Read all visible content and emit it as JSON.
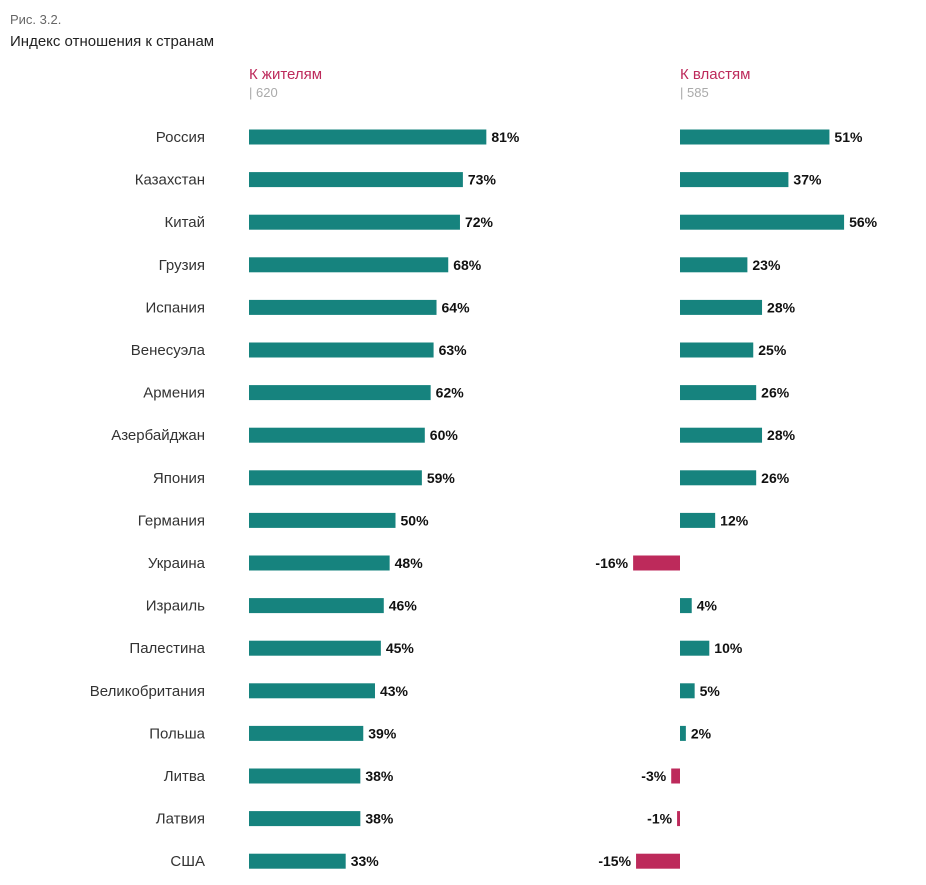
{
  "figure_label": "Рис. 3.2.",
  "colors": {
    "positive": "#16837e",
    "negative": "#bd2a5b",
    "series_title": "#bd2a5b"
  },
  "chart_data": {
    "type": "bar",
    "title": "Индекс отношения к странам",
    "categories": [
      "Россия",
      "Казахстан",
      "Китай",
      "Грузия",
      "Испания",
      "Венесуэла",
      "Армения",
      "Азербайджан",
      "Япония",
      "Германия",
      "Украина",
      "Израиль",
      "Палестина",
      "Великобритания",
      "Польша",
      "Литва",
      "Латвия",
      "США"
    ],
    "series": [
      {
        "name": "К жителям",
        "n_label": "| 620",
        "values": [
          81,
          73,
          72,
          68,
          64,
          63,
          62,
          60,
          59,
          50,
          48,
          46,
          45,
          43,
          39,
          38,
          38,
          33
        ]
      },
      {
        "name": "К властям",
        "n_label": "| 585",
        "values": [
          51,
          37,
          56,
          23,
          28,
          25,
          26,
          28,
          26,
          12,
          -16,
          4,
          10,
          5,
          2,
          -3,
          -1,
          -15
        ]
      }
    ],
    "value_suffix": "%",
    "grid": false,
    "legend": "top"
  }
}
